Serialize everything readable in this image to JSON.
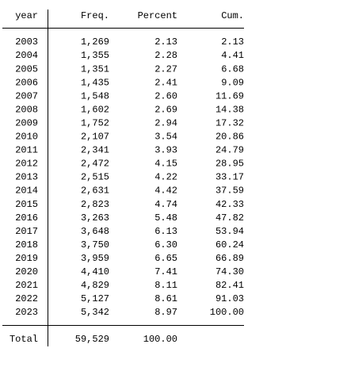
{
  "table": {
    "header": [
      "year",
      "Freq.",
      "Percent",
      "Cum."
    ],
    "rows": [
      [
        "2003",
        "1,269",
        "2.13",
        "2.13"
      ],
      [
        "2004",
        "1,355",
        "2.28",
        "4.41"
      ],
      [
        "2005",
        "1,351",
        "2.27",
        "6.68"
      ],
      [
        "2006",
        "1,435",
        "2.41",
        "9.09"
      ],
      [
        "2007",
        "1,548",
        "2.60",
        "11.69"
      ],
      [
        "2008",
        "1,602",
        "2.69",
        "14.38"
      ],
      [
        "2009",
        "1,752",
        "2.94",
        "17.32"
      ],
      [
        "2010",
        "2,107",
        "3.54",
        "20.86"
      ],
      [
        "2011",
        "2,341",
        "3.93",
        "24.79"
      ],
      [
        "2012",
        "2,472",
        "4.15",
        "28.95"
      ],
      [
        "2013",
        "2,515",
        "4.22",
        "33.17"
      ],
      [
        "2014",
        "2,631",
        "4.42",
        "37.59"
      ],
      [
        "2015",
        "2,823",
        "4.74",
        "42.33"
      ],
      [
        "2016",
        "3,263",
        "5.48",
        "47.82"
      ],
      [
        "2017",
        "3,648",
        "6.13",
        "53.94"
      ],
      [
        "2018",
        "3,750",
        "6.30",
        "60.24"
      ],
      [
        "2019",
        "3,959",
        "6.65",
        "66.89"
      ],
      [
        "2020",
        "4,410",
        "7.41",
        "74.30"
      ],
      [
        "2021",
        "4,829",
        "8.11",
        "82.41"
      ],
      [
        "2022",
        "5,127",
        "8.61",
        "91.03"
      ],
      [
        "2023",
        "5,342",
        "8.97",
        "100.00"
      ]
    ],
    "total": [
      "Total",
      "59,529",
      "100.00"
    ]
  }
}
